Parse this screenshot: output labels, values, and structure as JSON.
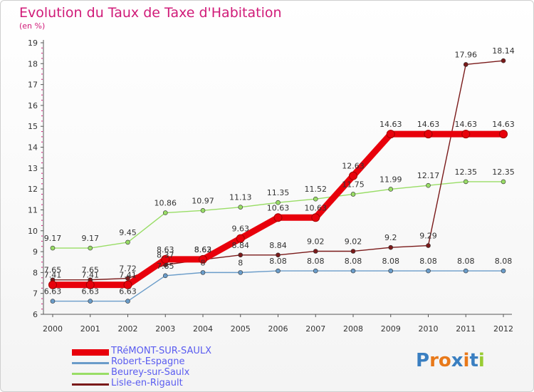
{
  "title": "Evolution du Taux de Taxe d'Habitation",
  "subtitle": "(en %)",
  "logo": "Proxiti",
  "chart_data": {
    "type": "line",
    "x": [
      "2000",
      "2001",
      "2002",
      "2003",
      "2004",
      "2005",
      "2006",
      "2007",
      "2008",
      "2009",
      "2010",
      "2011",
      "2012"
    ],
    "ylim": [
      6,
      19
    ],
    "yticks": [
      "6",
      "7",
      "8",
      "9",
      "10",
      "11",
      "12",
      "13",
      "14",
      "15",
      "16",
      "17",
      "18",
      "19"
    ],
    "grid": false,
    "legend_position": "bottom-left",
    "series": [
      {
        "name": "TRéMONT-SUR-SAULX",
        "color": "#e8000b",
        "labels": [
          "7.41",
          "7.41",
          "7.41",
          "8.63",
          "8.63",
          "9.63",
          "10.63",
          "10.63",
          "12.63",
          "14.63",
          "14.63",
          "14.63",
          "14.63"
        ],
        "values": [
          7.41,
          7.41,
          7.41,
          8.63,
          8.63,
          9.63,
          10.63,
          10.63,
          12.63,
          14.63,
          14.63,
          14.63,
          14.63
        ]
      },
      {
        "name": "Robert-Espagne",
        "color": "#6a9cc9",
        "labels": [
          "6.63",
          "6.63",
          "6.63",
          "7.85",
          "8",
          "8",
          "8.08",
          "8.08",
          "8.08",
          "8.08",
          "8.08",
          "8.08",
          "8.08"
        ],
        "values": [
          6.63,
          6.63,
          6.63,
          7.85,
          8,
          8,
          8.08,
          8.08,
          8.08,
          8.08,
          8.08,
          8.08,
          8.08
        ]
      },
      {
        "name": "Beurey-sur-Saulx",
        "color": "#99dd66",
        "labels": [
          "9.17",
          "9.17",
          "9.45",
          "10.86",
          "10.97",
          "11.13",
          "11.35",
          "11.52",
          "11.75",
          "11.99",
          "12.17",
          "12.35",
          "12.35"
        ],
        "values": [
          9.17,
          9.17,
          9.45,
          10.86,
          10.97,
          11.13,
          11.35,
          11.52,
          11.75,
          11.99,
          12.17,
          12.35,
          12.35
        ]
      },
      {
        "name": "Lisle-en-Rigault",
        "color": "#7a1a1a",
        "labels": [
          "7.65",
          "7.65",
          "7.72",
          "8.37",
          "8.62",
          "8.84",
          "8.84",
          "9.02",
          "9.02",
          "9.2",
          "9.29",
          "17.96",
          "18.14"
        ],
        "values": [
          7.65,
          7.65,
          7.72,
          8.37,
          8.62,
          8.84,
          8.84,
          9.02,
          9.02,
          9.2,
          9.29,
          17.96,
          18.14
        ]
      }
    ]
  }
}
